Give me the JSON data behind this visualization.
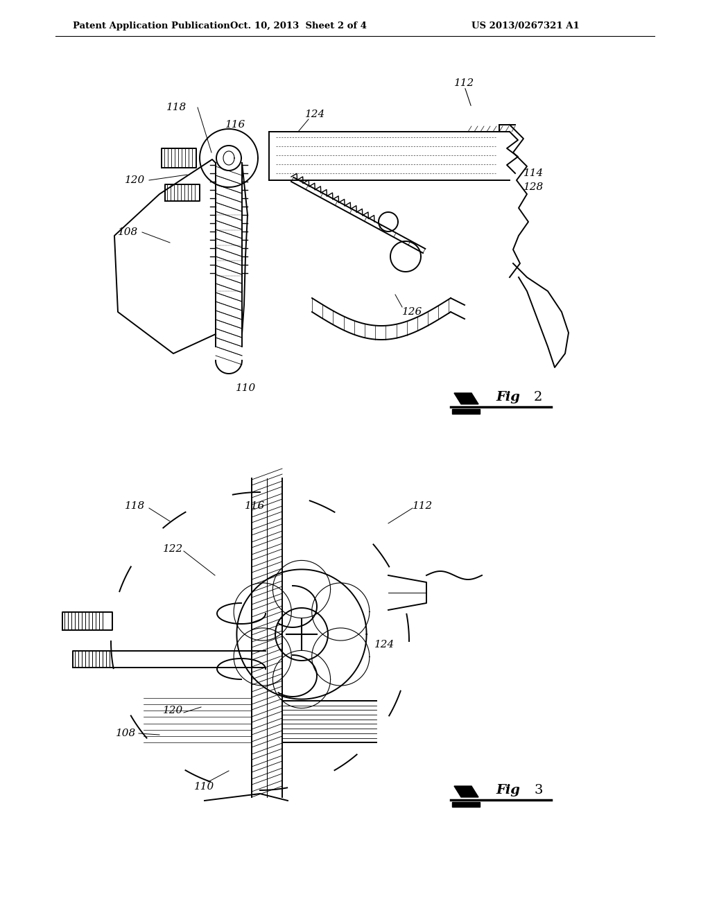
{
  "title_left": "Patent Application Publication",
  "title_center": "Oct. 10, 2013  Sheet 2 of 4",
  "title_right": "US 2013/0267321 A1",
  "background_color": "#ffffff",
  "line_color": "#000000"
}
